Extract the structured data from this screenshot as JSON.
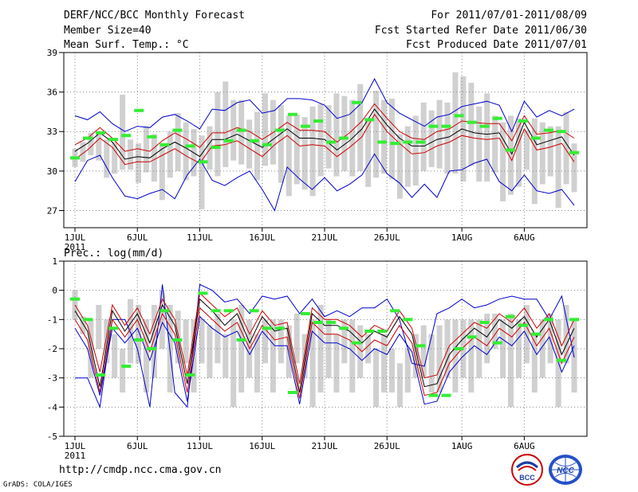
{
  "header": {
    "title": "DERF/NCC/BCC Monthly Forecast",
    "member_size": "Member Size=40",
    "variable_top": "Mean Surf. Temp.: °C",
    "period": "For 2011/07/01-2011/08/09",
    "fcst_started": "Fcst Started Refer Date 2011/06/30",
    "fcst_produced": "Fcst Produced Date 2011/07/01"
  },
  "footer": {
    "url": "http://cmdp.ncc.cma.gov.cn",
    "credit": "GrADS: COLA/IGES"
  },
  "logos": [
    {
      "name": "bcc-logo",
      "text": "BCC"
    },
    {
      "name": "ncc-logo",
      "text": "NCC"
    }
  ],
  "colors": {
    "envelope": "#0000cc",
    "spread": "#cc0000",
    "mean": "#000000",
    "obs": "#33ee33",
    "box": "#d0d0d0",
    "grid": "#888888"
  },
  "chart_data": [
    {
      "type": "ensemble-plume",
      "title": "Mean Surf. Temp.: °C",
      "x": {
        "days": 40,
        "tick_labels": [
          "1JUL",
          "6JUL",
          "11JUL",
          "16JUL",
          "21JUL",
          "26JUL",
          "1AUG",
          "6AUG"
        ],
        "tick_days": [
          1,
          6,
          11,
          16,
          21,
          26,
          32,
          37
        ],
        "year_label": "2011"
      },
      "ylim": [
        25.7,
        39
      ],
      "yticks": [
        27,
        30,
        33,
        36,
        39
      ],
      "y_tick_labels": [
        "27",
        "30",
        "33",
        "36",
        "39"
      ],
      "series": [
        {
          "name": "max",
          "values": [
            34.2,
            33.9,
            34.5,
            33.6,
            33.0,
            33.4,
            33.3,
            34.1,
            34.3,
            33.8,
            33.2,
            34.7,
            34.6,
            35.2,
            35.4,
            34.4,
            34.6,
            35.5,
            35.5,
            35.4,
            35.0,
            34.0,
            34.3,
            35.2,
            37.0,
            35.2,
            34.4,
            33.9,
            33.4,
            34.1,
            34.3,
            34.9,
            35.1,
            35.3,
            35.0,
            33.0,
            35.3,
            34.1,
            34.6,
            34.2,
            34.7
          ]
        },
        {
          "name": "upper",
          "values": [
            32.0,
            32.5,
            33.3,
            32.5,
            31.5,
            31.7,
            31.5,
            32.3,
            32.9,
            32.4,
            31.8,
            32.9,
            32.9,
            33.3,
            33.0,
            32.4,
            33.0,
            33.7,
            33.1,
            33.1,
            33.0,
            32.2,
            32.9,
            33.8,
            35.1,
            34.0,
            33.0,
            32.5,
            32.4,
            33.0,
            33.2,
            33.8,
            33.7,
            33.6,
            33.6,
            32.3,
            34.2,
            32.8,
            32.9,
            33.1,
            32.5
          ]
        },
        {
          "name": "mean",
          "values": [
            31.5,
            32.1,
            32.9,
            32.2,
            30.9,
            31.1,
            31.0,
            31.7,
            32.2,
            31.7,
            31.1,
            32.4,
            32.4,
            32.8,
            32.3,
            31.8,
            32.5,
            33.2,
            32.5,
            32.5,
            32.4,
            31.6,
            32.3,
            33.2,
            34.7,
            33.5,
            32.5,
            31.9,
            31.9,
            32.4,
            32.6,
            33.2,
            32.9,
            32.8,
            32.9,
            31.3,
            33.7,
            32.0,
            32.3,
            32.6,
            31.2
          ]
        },
        {
          "name": "lower",
          "values": [
            30.9,
            31.6,
            32.5,
            31.8,
            30.5,
            30.7,
            30.7,
            31.2,
            31.7,
            31.1,
            30.6,
            31.9,
            32.0,
            32.3,
            31.7,
            31.1,
            32.0,
            32.7,
            31.9,
            32.0,
            31.9,
            31.1,
            31.8,
            32.6,
            34.3,
            33.0,
            32.1,
            31.3,
            31.4,
            31.9,
            32.2,
            32.7,
            32.5,
            32.4,
            32.5,
            30.8,
            33.2,
            31.6,
            31.8,
            32.1,
            30.7
          ]
        },
        {
          "name": "min",
          "values": [
            29.2,
            30.8,
            31.2,
            29.5,
            28.1,
            27.9,
            28.3,
            28.6,
            27.9,
            29.7,
            30.9,
            29.3,
            28.9,
            29.5,
            30.0,
            28.6,
            27.0,
            30.3,
            29.4,
            28.6,
            29.5,
            28.5,
            29.0,
            29.7,
            31.3,
            29.8,
            29.1,
            28.0,
            29.0,
            28.0,
            30.0,
            30.1,
            30.6,
            30.9,
            29.2,
            28.5,
            29.7,
            28.5,
            28.3,
            28.6,
            27.4
          ]
        }
      ],
      "boxes": [
        [
          30.3,
          31.7
        ],
        [
          30.7,
          32.2
        ],
        [
          31.2,
          32.9
        ],
        [
          30.8,
          32.8
        ],
        [
          29.5,
          32.4
        ],
        [
          29.8,
          32.2
        ],
        [
          30.1,
          35.8
        ],
        [
          30.1,
          32.4
        ],
        [
          29.1,
          32.1
        ],
        [
          29.9,
          33.4
        ],
        [
          29.2,
          32.8
        ],
        [
          27.8,
          31.9
        ],
        [
          29.5,
          33.0
        ],
        [
          30.0,
          34.4
        ],
        [
          29.3,
          33.7
        ],
        [
          29.6,
          33.2
        ],
        [
          27.1,
          32.7
        ],
        [
          30.1,
          33.4
        ],
        [
          29.6,
          36.0
        ],
        [
          30.3,
          36.8
        ],
        [
          30.8,
          35.4
        ],
        [
          30.5,
          35.4
        ],
        [
          30.2,
          33.9
        ],
        [
          29.3,
          34.5
        ],
        [
          30.4,
          35.9
        ],
        [
          30.5,
          35.4
        ],
        [
          29.1,
          35.0
        ],
        [
          28.1,
          34.2
        ],
        [
          29.0,
          34.3
        ],
        [
          28.6,
          34.1
        ],
        [
          28.1,
          34.9
        ],
        [
          29.6,
          35.1
        ],
        [
          30.2,
          35.0
        ],
        [
          29.6,
          35.9
        ],
        [
          30.0,
          35.7
        ],
        [
          29.6,
          35.4
        ],
        [
          30.0,
          36.6
        ],
        [
          28.8,
          34.0
        ],
        [
          29.5,
          36.1
        ],
        [
          29.8,
          35.4
        ],
        [
          29.4,
          35.5
        ],
        [
          27.9,
          32.8
        ],
        [
          28.8,
          33.4
        ],
        [
          28.9,
          34.2
        ],
        [
          30.0,
          35.2
        ],
        [
          30.3,
          34.6
        ],
        [
          30.2,
          35.4
        ],
        [
          29.8,
          35.2
        ],
        [
          29.8,
          37.5
        ],
        [
          29.2,
          37.2
        ],
        [
          30.4,
          36.7
        ],
        [
          29.2,
          34.9
        ],
        [
          29.2,
          35.9
        ],
        [
          29.9,
          34.2
        ],
        [
          27.7,
          33.7
        ],
        [
          28.2,
          34.2
        ],
        [
          28.8,
          34.0
        ],
        [
          30.1,
          33.1
        ],
        [
          27.5,
          34.0
        ],
        [
          29.0,
          33.7
        ],
        [
          29.6,
          33.4
        ],
        [
          27.2,
          33.4
        ],
        [
          29.0,
          34.5
        ],
        [
          28.4,
          32.1
        ]
      ],
      "obs": [
        31.0,
        32.5,
        32.9,
        32.4,
        32.7,
        34.6,
        32.6,
        32.0,
        33.1,
        31.9,
        30.7,
        31.8,
        32.3,
        33.1,
        32.3,
        32.0,
        33.1,
        34.3,
        33.4,
        33.8,
        32.2,
        32.5,
        35.2,
        33.9,
        32.2,
        32.1,
        32.2,
        32.2,
        33.4,
        33.4,
        34.2,
        33.7,
        33.4,
        34.0,
        31.6,
        33.8,
        32.5,
        33.1,
        33.0,
        31.4
      ]
    },
    {
      "type": "ensemble-plume",
      "title": "Prec.: log(mm/d)",
      "x": {
        "days": 40,
        "tick_labels": [
          "1JUL",
          "6JUL",
          "11JUL",
          "16JUL",
          "21JUL",
          "26JUL",
          "1AUG",
          "6AUG"
        ],
        "tick_days": [
          1,
          6,
          11,
          16,
          21,
          26,
          32,
          37
        ],
        "year_label": "2011"
      },
      "ylim": [
        -5,
        1
      ],
      "yticks": [
        -5,
        -4,
        -3,
        -2,
        -1,
        0,
        1
      ],
      "y_tick_labels": [
        "-5",
        "-4",
        "-3",
        "-2",
        "-1",
        "0",
        "1"
      ],
      "series": [
        {
          "name": "max",
          "values": [
            -3.0,
            -3.0,
            -4.0,
            -1.0,
            -1.0,
            -2.0,
            -4.0,
            0.2,
            -3.5,
            -4.0,
            0.2,
            0.0,
            -0.4,
            -0.3,
            -0.8,
            -0.2,
            -0.3,
            -0.2,
            -0.8,
            -0.3,
            -0.9,
            -0.7,
            -0.9,
            -0.6,
            -0.6,
            -0.3,
            -1.0,
            -2.5,
            -2.6,
            -0.8,
            -0.6,
            -0.3,
            -0.6,
            -0.5,
            -0.3,
            -0.2,
            -0.3,
            -0.3,
            -1.0,
            -0.2,
            -2.3
          ]
        },
        {
          "name": "upper",
          "values": [
            -0.5,
            -1.2,
            -2.8,
            -0.5,
            -1.2,
            -0.6,
            -1.5,
            -0.3,
            -1.0,
            -2.9,
            -0.1,
            -0.5,
            -0.9,
            -0.6,
            -1.5,
            -0.7,
            -1.2,
            -1.1,
            -3.2,
            -0.6,
            -1.0,
            -1.0,
            -1.2,
            -1.6,
            -1.2,
            -1.4,
            -0.7,
            -1.3,
            -3.0,
            -2.9,
            -1.9,
            -1.5,
            -1.1,
            -1.3,
            -0.8,
            -1.1,
            -0.6,
            -1.3,
            -0.8,
            -1.9,
            -1.0
          ]
        },
        {
          "name": "mean",
          "values": [
            -0.7,
            -1.4,
            -3.3,
            -0.7,
            -1.4,
            -0.8,
            -1.8,
            -0.5,
            -1.2,
            -3.2,
            -0.3,
            -0.7,
            -1.2,
            -0.8,
            -1.8,
            -0.9,
            -1.4,
            -1.3,
            -3.5,
            -0.8,
            -1.2,
            -1.2,
            -1.4,
            -1.8,
            -1.4,
            -1.6,
            -0.9,
            -1.5,
            -3.3,
            -3.2,
            -2.2,
            -1.7,
            -1.3,
            -1.6,
            -1.0,
            -1.3,
            -0.9,
            -1.6,
            -1.0,
            -2.2,
            -1.3
          ]
        },
        {
          "name": "lower",
          "values": [
            -1.0,
            -1.7,
            -3.5,
            -1.0,
            -1.6,
            -1.0,
            -2.1,
            -0.8,
            -1.5,
            -3.5,
            -0.6,
            -1.0,
            -1.4,
            -1.1,
            -2.0,
            -1.2,
            -1.7,
            -1.6,
            -3.7,
            -1.1,
            -1.5,
            -1.5,
            -1.7,
            -2.1,
            -1.7,
            -1.9,
            -1.2,
            -1.8,
            -3.6,
            -3.5,
            -2.5,
            -2.0,
            -1.6,
            -1.9,
            -1.3,
            -1.6,
            -1.1,
            -1.9,
            -1.3,
            -2.5,
            -1.6
          ]
        },
        {
          "name": "min",
          "values": [
            -1.3,
            -2.0,
            -3.6,
            -1.3,
            -1.8,
            -1.3,
            -2.4,
            -1.1,
            -1.8,
            -3.8,
            -0.9,
            -1.3,
            -1.6,
            -1.4,
            -2.2,
            -1.4,
            -1.9,
            -1.9,
            -3.9,
            -1.4,
            -1.8,
            -1.8,
            -2.0,
            -2.4,
            -2.0,
            -2.2,
            -1.5,
            -2.1,
            -3.9,
            -3.8,
            -2.8,
            -2.3,
            -1.9,
            -2.2,
            -1.6,
            -1.9,
            -1.4,
            -2.2,
            -1.6,
            -2.8,
            -1.9
          ]
        }
      ],
      "boxes": [
        [
          -1.0,
          0.0
        ],
        [
          -1.5,
          -0.9
        ],
        [
          -3.0,
          -1.0
        ],
        [
          -2.0,
          -0.5
        ],
        [
          -2.5,
          -1.0
        ],
        [
          -3.0,
          -1.5
        ],
        [
          -3.5,
          -2.0
        ],
        [
          -2.5,
          -0.3
        ],
        [
          -2.5,
          -0.5
        ],
        [
          -3.5,
          -1.0
        ],
        [
          -3.0,
          -0.5
        ],
        [
          -2.0,
          0.0
        ],
        [
          -3.5,
          -0.5
        ],
        [
          -2.5,
          -0.7
        ],
        [
          -2.5,
          -1.0
        ],
        [
          -3.5,
          -1.0
        ],
        [
          -2.5,
          -1.0
        ],
        [
          -3.0,
          -1.2
        ],
        [
          -2.5,
          -0.8
        ],
        [
          -3.0,
          -1.5
        ],
        [
          -4.0,
          -1.0
        ],
        [
          -3.5,
          -0.5
        ],
        [
          -3.0,
          -1.0
        ],
        [
          -3.5,
          -1.5
        ],
        [
          -2.5,
          -1.0
        ],
        [
          -3.5,
          -1.0
        ],
        [
          -2.5,
          -1.0
        ],
        [
          -3.0,
          -1.2
        ],
        [
          -2.5,
          -0.8
        ],
        [
          -3.0,
          -1.5
        ],
        [
          -4.0,
          -1.0
        ],
        [
          -3.5,
          -0.5
        ],
        [
          -3.0,
          -1.0
        ],
        [
          -3.5,
          -1.5
        ],
        [
          -2.5,
          -1.0
        ],
        [
          -3.5,
          -1.0
        ],
        [
          -3.0,
          -1.2
        ],
        [
          -2.5,
          -1.5
        ],
        [
          -4.0,
          -2.0
        ],
        [
          -3.5,
          -1.5
        ],
        [
          -3.5,
          -2.0
        ],
        [
          -4.0,
          -2.5
        ],
        [
          -3.5,
          -2.0
        ],
        [
          -3.0,
          -1.5
        ],
        [
          -3.0,
          -1.2
        ],
        [
          -3.5,
          -1.5
        ],
        [
          -3.5,
          -1.2
        ],
        [
          -3.0,
          -1.0
        ],
        [
          -3.5,
          -1.0
        ],
        [
          -3.0,
          -1.0
        ],
        [
          -3.5,
          -1.0
        ],
        [
          -3.0,
          -1.0
        ],
        [
          -2.5,
          -0.8
        ],
        [
          -2.0,
          -0.8
        ],
        [
          -3.0,
          -1.0
        ],
        [
          -4.0,
          -0.8
        ],
        [
          -3.0,
          -1.0
        ],
        [
          -2.5,
          -0.5
        ],
        [
          -3.5,
          -1.5
        ],
        [
          -3.0,
          -1.0
        ],
        [
          -2.5,
          -0.8
        ],
        [
          -4.0,
          -1.0
        ],
        [
          -2.5,
          -0.5
        ],
        [
          -3.5,
          -1.0
        ]
      ],
      "obs": [
        -0.3,
        -1.0,
        -2.9,
        -1.3,
        -2.6,
        -1.7,
        -2.0,
        -0.7,
        -1.7,
        -2.9,
        -0.1,
        -0.7,
        -0.7,
        -1.7,
        -0.7,
        -1.3,
        -1.3,
        -3.5,
        -0.8,
        -1.1,
        -1.1,
        -1.3,
        -1.8,
        -1.4,
        -1.4,
        -0.7,
        -1.0,
        -1.9,
        -3.6,
        -3.6,
        -2.0,
        -1.6,
        -1.1,
        -1.8,
        -0.9,
        -1.2,
        -1.5,
        -1.0,
        -2.4,
        -1.0
      ]
    }
  ]
}
